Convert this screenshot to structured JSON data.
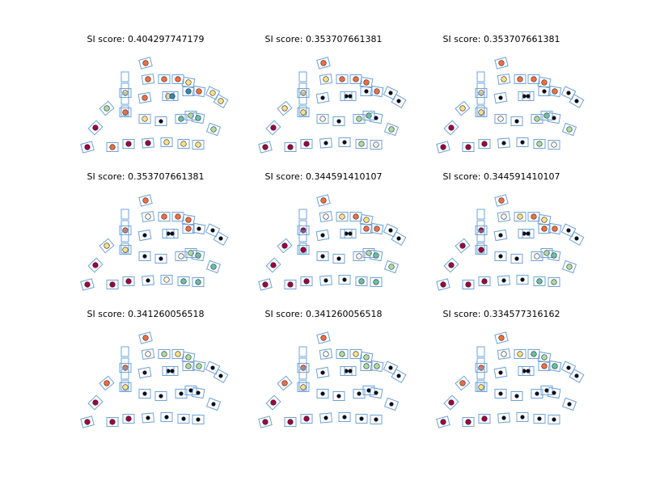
{
  "chart_data": {
    "type": "scatter",
    "title": "",
    "panels": [
      {
        "title": "SI score: 0.404297747179",
        "rows": [
          [
            {
              "c": "orange"
            },
            {
              "c": "orange"
            },
            {
              "c": "orange"
            },
            {
              "c": "orange"
            },
            {
              "c": "yellow"
            },
            {
              "c": "yellow"
            }
          ],
          [
            {
              "c": "lime"
            },
            {
              "c": "yellow"
            },
            {
              "c": "orange"
            },
            {
              "c": "yellow"
            },
            {
              "c": "blue"
            },
            {
              "c": "blue"
            },
            {
              "c": "orange"
            },
            {
              "c": "yellow"
            }
          ],
          [
            {
              "c": "magenta"
            },
            {
              "c": "orange"
            },
            {
              "c": "yellow"
            },
            {
              "c": "navy"
            },
            {
              "c": "teal"
            },
            {
              "c": "lime"
            },
            {
              "c": "teal"
            },
            {
              "c": "lime"
            }
          ],
          [
            {
              "c": "magenta"
            },
            {
              "c": "orange"
            },
            {
              "c": "magenta"
            },
            {
              "c": "magenta"
            },
            {
              "c": "yellow"
            },
            {
              "c": "yellow"
            },
            {
              "c": "yellow"
            }
          ]
        ]
      },
      {
        "title": "SI score: 0.353707661381",
        "rows": [
          [
            {
              "c": "orange"
            },
            {
              "c": "yellow"
            },
            {
              "c": "orange"
            },
            {
              "c": "orange"
            },
            {
              "c": "orange"
            },
            {
              "c": "navy"
            }
          ],
          [
            {
              "c": "yellow"
            },
            {
              "c": "yellow"
            },
            {
              "c": "navy"
            },
            {
              "c": "navy"
            },
            {
              "c": "navy"
            },
            {
              "c": "navy"
            },
            {
              "c": "orange"
            },
            {
              "c": "navy"
            }
          ],
          [
            {
              "c": "magenta"
            },
            {
              "c": "yellow"
            },
            {
              "c": "white"
            },
            {
              "c": "navy"
            },
            {
              "c": "lime"
            },
            {
              "c": "teal"
            },
            {
              "c": "navy"
            },
            {
              "c": "lime"
            }
          ],
          [
            {
              "c": "magenta"
            },
            {
              "c": "magenta"
            },
            {
              "c": "magenta"
            },
            {
              "c": "navy"
            },
            {
              "c": "navy"
            },
            {
              "c": "lime"
            },
            {
              "c": "white"
            }
          ]
        ]
      },
      {
        "title": "SI score: 0.353707661381",
        "rows": [
          [
            {
              "c": "orange"
            },
            {
              "c": "yellow"
            },
            {
              "c": "orange"
            },
            {
              "c": "orange"
            },
            {
              "c": "orange"
            },
            {
              "c": "navy"
            }
          ],
          [
            {
              "c": "yellow"
            },
            {
              "c": "yellow"
            },
            {
              "c": "navy"
            },
            {
              "c": "navy"
            },
            {
              "c": "navy"
            },
            {
              "c": "navy"
            },
            {
              "c": "orange"
            },
            {
              "c": "navy"
            }
          ],
          [
            {
              "c": "magenta"
            },
            {
              "c": "yellow"
            },
            {
              "c": "white"
            },
            {
              "c": "navy"
            },
            {
              "c": "lime"
            },
            {
              "c": "teal"
            },
            {
              "c": "navy"
            },
            {
              "c": "lime"
            }
          ],
          [
            {
              "c": "magenta"
            },
            {
              "c": "magenta"
            },
            {
              "c": "magenta"
            },
            {
              "c": "navy"
            },
            {
              "c": "navy"
            },
            {
              "c": "lime"
            },
            {
              "c": "white"
            }
          ]
        ]
      },
      {
        "title": "SI score: 0.353707661381",
        "rows": [
          [
            {
              "c": "orange"
            },
            {
              "c": "white"
            },
            {
              "c": "orange"
            },
            {
              "c": "orange"
            },
            {
              "c": "orange"
            },
            {
              "c": "navy"
            }
          ],
          [
            {
              "c": "yellow"
            },
            {
              "c": "orange"
            },
            {
              "c": "navy"
            },
            {
              "c": "navy"
            },
            {
              "c": "navy"
            },
            {
              "c": "orange"
            },
            {
              "c": "navy"
            },
            {
              "c": "navy"
            }
          ],
          [
            {
              "c": "magenta"
            },
            {
              "c": "yellow"
            },
            {
              "c": "navy"
            },
            {
              "c": "navy"
            },
            {
              "c": "white"
            },
            {
              "c": "lime"
            },
            {
              "c": "teal"
            },
            {
              "c": "teal"
            }
          ],
          [
            {
              "c": "magenta"
            },
            {
              "c": "magenta"
            },
            {
              "c": "magenta"
            },
            {
              "c": "navy"
            },
            {
              "c": "white"
            },
            {
              "c": "teal"
            },
            {
              "c": "teal"
            }
          ]
        ]
      },
      {
        "title": "SI score: 0.344591410107",
        "rows": [
          [
            {
              "c": "orange"
            },
            {
              "c": "white"
            },
            {
              "c": "yellow"
            },
            {
              "c": "orange"
            },
            {
              "c": "yellow"
            },
            {
              "c": "navy"
            }
          ],
          [
            {
              "c": "magenta"
            },
            {
              "c": "magenta"
            },
            {
              "c": "navy"
            },
            {
              "c": "navy"
            },
            {
              "c": "navy"
            },
            {
              "c": "orange"
            },
            {
              "c": "orange"
            },
            {
              "c": "navy"
            }
          ],
          [
            {
              "c": "magenta"
            },
            {
              "c": "magenta"
            },
            {
              "c": "navy"
            },
            {
              "c": "navy"
            },
            {
              "c": "white"
            },
            {
              "c": "lime"
            },
            {
              "c": "teal"
            },
            {
              "c": "lime"
            }
          ],
          [
            {
              "c": "magenta"
            },
            {
              "c": "magenta"
            },
            {
              "c": "magenta"
            },
            {
              "c": "navy"
            },
            {
              "c": "navy"
            },
            {
              "c": "teal"
            },
            {
              "c": "teal"
            }
          ]
        ]
      },
      {
        "title": "SI score: 0.344591410107",
        "rows": [
          [
            {
              "c": "orange"
            },
            {
              "c": "white"
            },
            {
              "c": "yellow"
            },
            {
              "c": "orange"
            },
            {
              "c": "yellow"
            },
            {
              "c": "navy"
            }
          ],
          [
            {
              "c": "magenta"
            },
            {
              "c": "magenta"
            },
            {
              "c": "navy"
            },
            {
              "c": "navy"
            },
            {
              "c": "navy"
            },
            {
              "c": "orange"
            },
            {
              "c": "orange"
            },
            {
              "c": "navy"
            }
          ],
          [
            {
              "c": "magenta"
            },
            {
              "c": "magenta"
            },
            {
              "c": "navy"
            },
            {
              "c": "navy"
            },
            {
              "c": "white"
            },
            {
              "c": "lime"
            },
            {
              "c": "teal"
            },
            {
              "c": "lime"
            }
          ],
          [
            {
              "c": "magenta"
            },
            {
              "c": "magenta"
            },
            {
              "c": "magenta"
            },
            {
              "c": "navy"
            },
            {
              "c": "navy"
            },
            {
              "c": "teal"
            },
            {
              "c": "lime"
            }
          ]
        ]
      },
      {
        "title": "SI score: 0.341260056518",
        "rows": [
          [
            {
              "c": "orange"
            },
            {
              "c": "white"
            },
            {
              "c": "lime"
            },
            {
              "c": "yellow"
            },
            {
              "c": "lime"
            },
            {
              "c": "navy"
            }
          ],
          [
            {
              "c": "orange"
            },
            {
              "c": "orange"
            },
            {
              "c": "navy"
            },
            {
              "c": "navy"
            },
            {
              "c": "navy"
            },
            {
              "c": "lime"
            },
            {
              "c": "lime"
            },
            {
              "c": "navy"
            }
          ],
          [
            {
              "c": "magenta"
            },
            {
              "c": "yellow"
            },
            {
              "c": "navy"
            },
            {
              "c": "navy"
            },
            {
              "c": "navy"
            },
            {
              "c": "navy"
            },
            {
              "c": "navy"
            },
            {
              "c": "navy"
            }
          ],
          [
            {
              "c": "magenta"
            },
            {
              "c": "magenta"
            },
            {
              "c": "magenta"
            },
            {
              "c": "navy"
            },
            {
              "c": "navy"
            },
            {
              "c": "navy"
            },
            {
              "c": "navy"
            }
          ]
        ]
      },
      {
        "title": "SI score: 0.341260056518",
        "rows": [
          [
            {
              "c": "orange"
            },
            {
              "c": "white"
            },
            {
              "c": "lime"
            },
            {
              "c": "yellow"
            },
            {
              "c": "lime"
            },
            {
              "c": "navy"
            }
          ],
          [
            {
              "c": "orange"
            },
            {
              "c": "orange"
            },
            {
              "c": "navy"
            },
            {
              "c": "navy"
            },
            {
              "c": "navy"
            },
            {
              "c": "lime"
            },
            {
              "c": "lime"
            },
            {
              "c": "navy"
            }
          ],
          [
            {
              "c": "magenta"
            },
            {
              "c": "yellow"
            },
            {
              "c": "navy"
            },
            {
              "c": "navy"
            },
            {
              "c": "navy"
            },
            {
              "c": "navy"
            },
            {
              "c": "navy"
            },
            {
              "c": "navy"
            }
          ],
          [
            {
              "c": "magenta"
            },
            {
              "c": "magenta"
            },
            {
              "c": "magenta"
            },
            {
              "c": "navy"
            },
            {
              "c": "navy"
            },
            {
              "c": "navy"
            },
            {
              "c": "navy"
            }
          ]
        ]
      },
      {
        "title": "SI score: 0.334577316162",
        "rows": [
          [
            {
              "c": "orange"
            },
            {
              "c": "white"
            },
            {
              "c": "yellow"
            },
            {
              "c": "teal"
            },
            {
              "c": "lime"
            },
            {
              "c": "navy"
            }
          ],
          [
            {
              "c": "orange"
            },
            {
              "c": "orange"
            },
            {
              "c": "navy"
            },
            {
              "c": "navy"
            },
            {
              "c": "navy"
            },
            {
              "c": "orange"
            },
            {
              "c": "teal"
            },
            {
              "c": "navy"
            }
          ],
          [
            {
              "c": "magenta"
            },
            {
              "c": "yellow"
            },
            {
              "c": "navy"
            },
            {
              "c": "navy"
            },
            {
              "c": "navy"
            },
            {
              "c": "navy"
            },
            {
              "c": "navy"
            },
            {
              "c": "navy"
            }
          ],
          [
            {
              "c": "magenta"
            },
            {
              "c": "magenta"
            },
            {
              "c": "magenta"
            },
            {
              "c": "navy"
            },
            {
              "c": "navy"
            },
            {
              "c": "navy"
            },
            {
              "c": "navy"
            }
          ]
        ]
      }
    ],
    "palette": {
      "magenta": "#9e0142",
      "orange": "#f46d43",
      "yellow": "#fee08b",
      "lime": "#abdda4",
      "teal": "#66c2a5",
      "blue": "#3288bd",
      "navy": "#0b0b1e",
      "white": "#f7f7f7"
    },
    "box_color": "#6ea3d8"
  }
}
